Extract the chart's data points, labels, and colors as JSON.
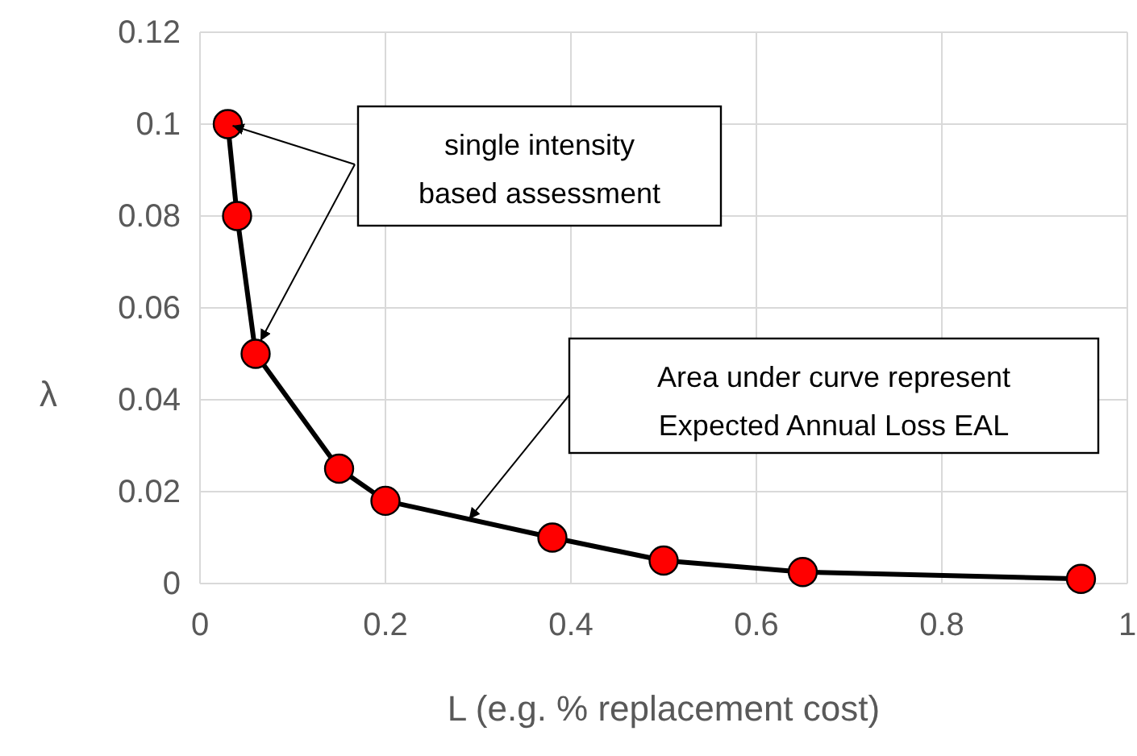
{
  "chart_data": {
    "type": "line",
    "xlabel": "L (e.g. % replacement cost)",
    "ylabel": "λ",
    "x": [
      0.03,
      0.04,
      0.06,
      0.15,
      0.2,
      0.38,
      0.5,
      0.65,
      0.95
    ],
    "series": [
      {
        "color": "#ff0000",
        "values": [
          0.1,
          0.08,
          0.05,
          0.025,
          0.018,
          0.01,
          0.005,
          0.0025,
          0.001
        ]
      }
    ],
    "xlim": [
      0,
      1
    ],
    "xticks": [
      0,
      0.2,
      0.4,
      0.6,
      0.8,
      1
    ],
    "ylim": [
      0,
      0.12
    ],
    "yticks": [
      0,
      0.02,
      0.04,
      0.06,
      0.08,
      0.1,
      0.12
    ],
    "grid": true,
    "marker": "circle",
    "line_style": "solid",
    "annotations": [
      "single intensity based assessment",
      "Area under curve represent Expected Annual Loss EAL"
    ]
  }
}
